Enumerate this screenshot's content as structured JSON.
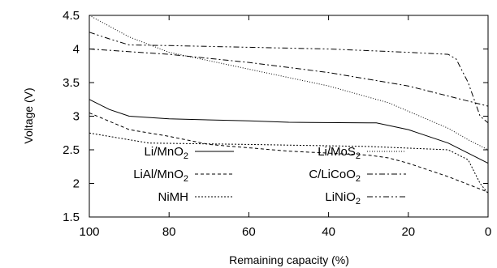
{
  "chart_data": {
    "type": "line",
    "title": "",
    "xlabel": "Remaining capacity (%)",
    "ylabel": "Voltage (V)",
    "xlim": [
      100,
      0
    ],
    "ylim": [
      1.5,
      4.5
    ],
    "x_reversed": true,
    "grid": false,
    "legend_placement": "bottom",
    "xticks": [
      "100",
      "80",
      "60",
      "40",
      "20",
      "0"
    ],
    "yticks": [
      "1.5",
      "2",
      "2.5",
      "3",
      "3.5",
      "4",
      "4.5"
    ],
    "series": [
      {
        "name": "Li/MnO",
        "sub": "2",
        "dash": "solid",
        "points": [
          [
            100,
            3.25
          ],
          [
            95,
            3.1
          ],
          [
            90,
            3.0
          ],
          [
            80,
            2.96
          ],
          [
            60,
            2.93
          ],
          [
            50,
            2.91
          ],
          [
            30,
            2.9
          ],
          [
            28,
            2.9
          ],
          [
            20,
            2.8
          ],
          [
            10,
            2.6
          ],
          [
            0,
            2.3
          ]
        ]
      },
      {
        "name": "LiAl/MnO",
        "sub": "2",
        "dash": "dashed",
        "points": [
          [
            100,
            3.05
          ],
          [
            90,
            2.8
          ],
          [
            80,
            2.7
          ],
          [
            70,
            2.58
          ],
          [
            50,
            2.48
          ],
          [
            30,
            2.42
          ],
          [
            25,
            2.38
          ],
          [
            20,
            2.3
          ],
          [
            10,
            2.1
          ],
          [
            0,
            1.87
          ]
        ]
      },
      {
        "name": "NiMH",
        "sub": "",
        "dash": "dotted",
        "points": [
          [
            100,
            2.75
          ],
          [
            90,
            2.65
          ],
          [
            85,
            2.6
          ],
          [
            60,
            2.58
          ],
          [
            30,
            2.55
          ],
          [
            10,
            2.5
          ],
          [
            5,
            2.35
          ],
          [
            2,
            2.0
          ],
          [
            0,
            1.85
          ]
        ]
      },
      {
        "name": "Li/MoS",
        "sub": "2",
        "dash": "fine-dotted",
        "points": [
          [
            100,
            4.5
          ],
          [
            90,
            4.18
          ],
          [
            80,
            3.95
          ],
          [
            60,
            3.7
          ],
          [
            40,
            3.45
          ],
          [
            25,
            3.2
          ],
          [
            10,
            2.82
          ],
          [
            5,
            2.65
          ],
          [
            0,
            2.5
          ]
        ]
      },
      {
        "name": "C/LiCoO",
        "sub": "2",
        "dash": "dash-dot",
        "points": [
          [
            100,
            4.0
          ],
          [
            80,
            3.92
          ],
          [
            60,
            3.8
          ],
          [
            40,
            3.65
          ],
          [
            20,
            3.45
          ],
          [
            10,
            3.3
          ],
          [
            0,
            3.15
          ]
        ]
      },
      {
        "name": "LiNiO",
        "sub": "2",
        "dash": "dash-dot-dot",
        "points": [
          [
            100,
            4.25
          ],
          [
            95,
            4.15
          ],
          [
            90,
            4.06
          ],
          [
            80,
            4.05
          ],
          [
            40,
            4.0
          ],
          [
            20,
            3.95
          ],
          [
            10,
            3.92
          ],
          [
            8,
            3.85
          ],
          [
            5,
            3.5
          ],
          [
            2,
            3.0
          ],
          [
            0,
            2.9
          ]
        ]
      }
    ]
  }
}
